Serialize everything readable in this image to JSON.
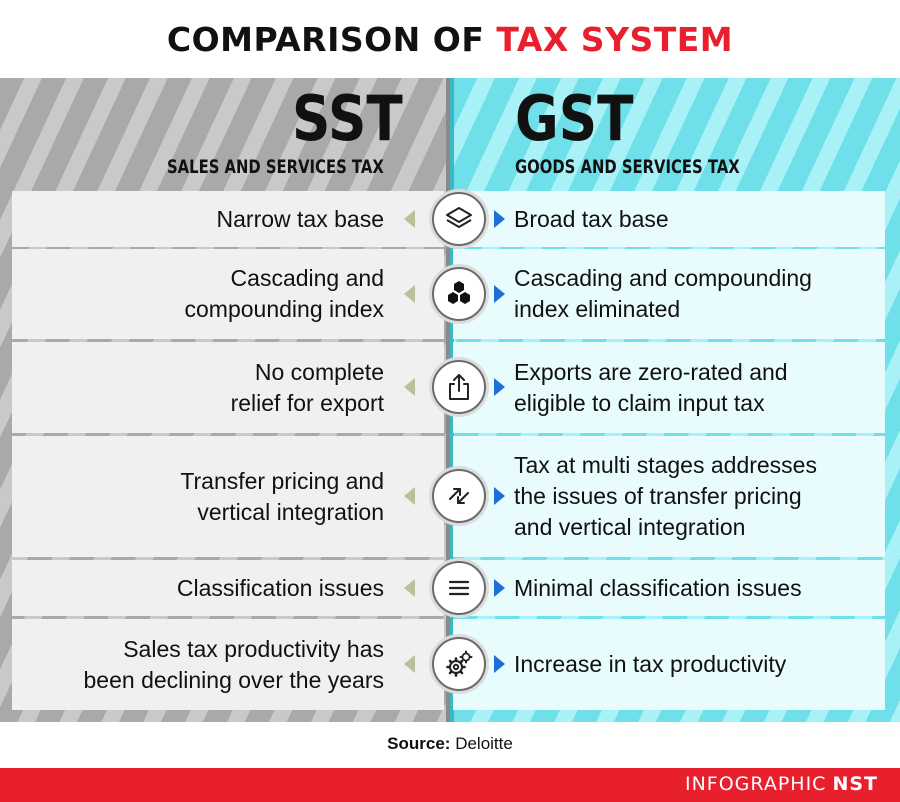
{
  "title": {
    "part1": "COMPARISON OF",
    "part2": "TAX SYSTEM"
  },
  "colors": {
    "accent_red": "#e8202e",
    "gst_cyan": "#8ceaf1",
    "arrow_blue": "#1f6fd8"
  },
  "left": {
    "abbr": "SST",
    "full": "SALES AND SERVICES TAX"
  },
  "right": {
    "abbr": "GST",
    "full": "GOODS AND SERVICES TAX"
  },
  "rows": [
    {
      "sst": "Narrow tax base",
      "gst": "Broad tax base",
      "icon": "layers-icon"
    },
    {
      "sst": "Cascading and\ncompounding index",
      "gst": "Cascading and compounding\nindex eliminated",
      "icon": "hexagons-icon"
    },
    {
      "sst": "No complete\nrelief for export",
      "gst": "Exports are zero-rated and\neligible to claim input tax",
      "icon": "export-share-icon"
    },
    {
      "sst": "Transfer pricing and\nvertical integration",
      "gst": "Tax at multi stages addresses\nthe issues of transfer pricing\nand vertical integration",
      "icon": "transfer-arrows-icon"
    },
    {
      "sst": "Classification issues",
      "gst": "Minimal classification issues",
      "icon": "list-lines-icon"
    },
    {
      "sst": "Sales tax productivity has\nbeen declining over the years",
      "gst": "Increase in tax productivity",
      "icon": "gears-icon"
    }
  ],
  "source": {
    "label": "Source:",
    "value": "Deloitte"
  },
  "footer": {
    "brand_prefix": "INFOGRAPHIC",
    "brand_name": "NST"
  }
}
